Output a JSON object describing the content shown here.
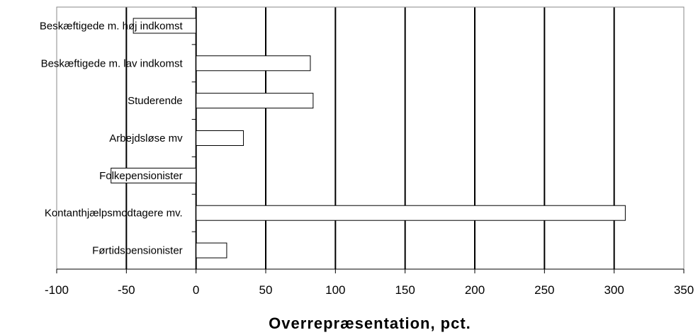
{
  "chart_data": {
    "type": "bar",
    "orientation": "horizontal",
    "categories": [
      "Beskæftigede m. høj indkomst",
      "Beskæftigede m. lav indkomst",
      "Studerende",
      "Arbejdsløse mv",
      "Folkepensionister",
      "Kontanthjælpsmodtagere mv.",
      "Førtidspensionister"
    ],
    "values": [
      -45,
      82,
      84,
      34,
      -61,
      308,
      22
    ],
    "xlabel": "Overrepræsentation, pct.",
    "ylabel": "",
    "xlim": [
      -100,
      350
    ],
    "xticks": [
      -100,
      -50,
      0,
      50,
      100,
      150,
      200,
      250,
      300,
      350
    ],
    "xtick_labels": [
      "-100",
      "-50",
      "0",
      "50",
      "100",
      "150",
      "200",
      "250",
      "300",
      "350"
    ],
    "grid": "vertical major gridlines",
    "legend": "none",
    "bar_fill": "#ffffff",
    "bar_stroke": "#000000"
  }
}
